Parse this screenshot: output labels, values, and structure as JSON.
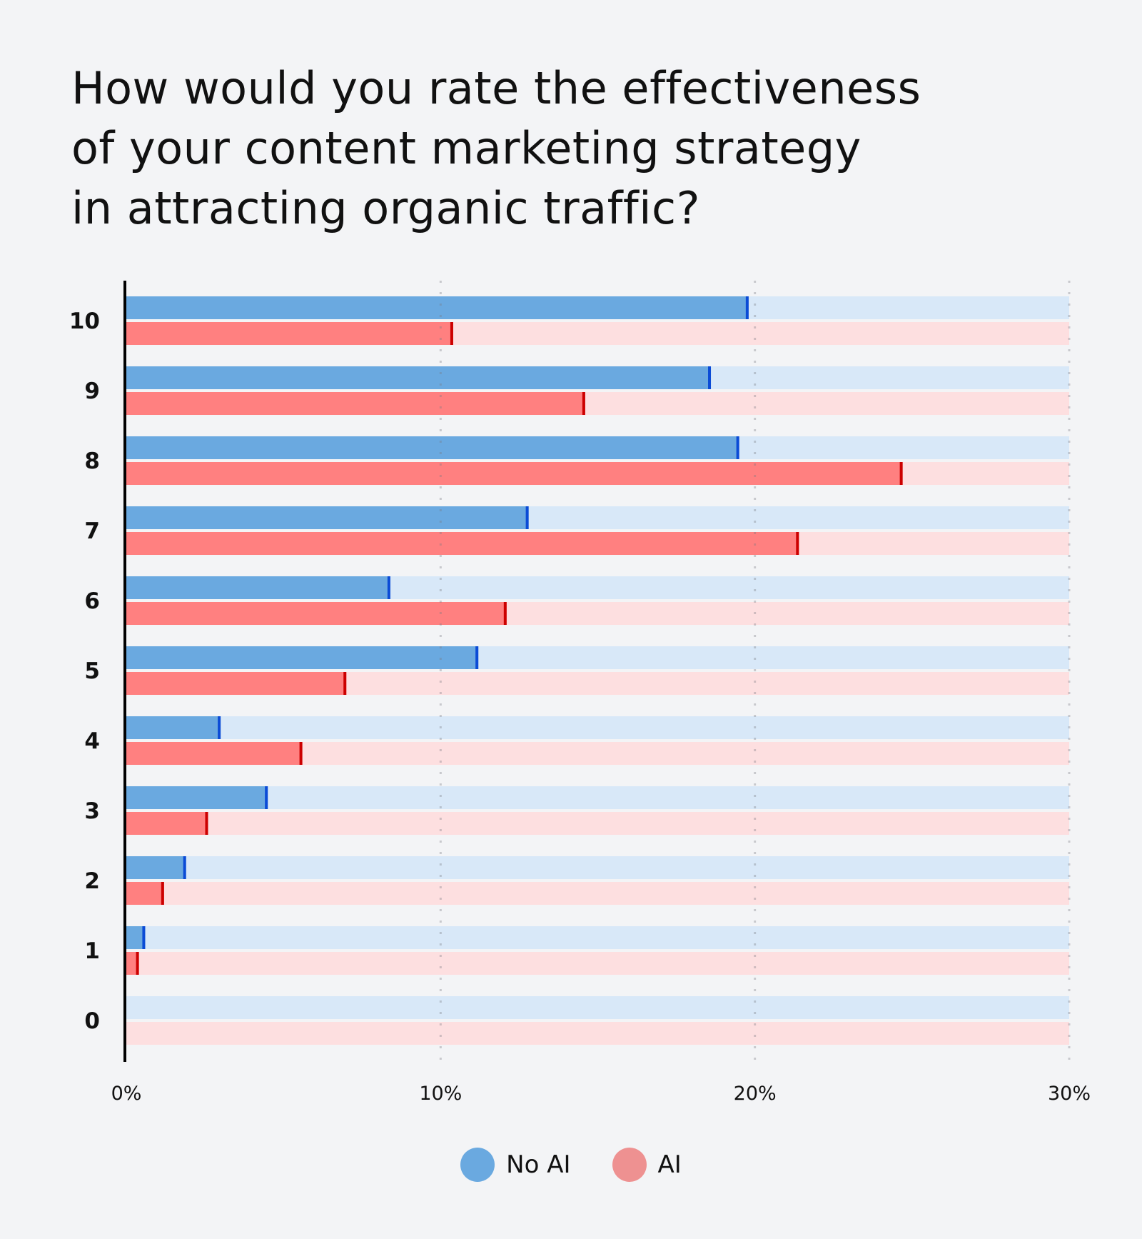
{
  "chart_data": {
    "type": "bar",
    "orientation": "horizontal",
    "title": "How would you rate the effectiveness of your content marketing strategy in attracting organic traffic?",
    "title_lines": [
      "How would you rate the effectiveness",
      "of your content marketing strategy",
      "in attracting organic traffic?"
    ],
    "categories": [
      "10",
      "9",
      "8",
      "7",
      "6",
      "5",
      "4",
      "3",
      "2",
      "1",
      "0"
    ],
    "series": [
      {
        "name": "No AI",
        "color": "#6aa9e0",
        "track_color": "#d8e8f8",
        "marker_color": "#0b4bd6",
        "values": [
          19.8,
          18.6,
          19.5,
          12.8,
          8.4,
          11.2,
          3.0,
          4.5,
          1.9,
          0.6,
          0
        ]
      },
      {
        "name": "AI",
        "color": "#ff8080",
        "track_color": "#fddfe0",
        "marker_color": "#cc0000",
        "values": [
          10.4,
          14.6,
          24.7,
          21.4,
          12.1,
          7.0,
          5.6,
          2.6,
          1.2,
          0.4,
          0
        ]
      }
    ],
    "xlim": [
      0,
      30
    ],
    "xticks": [
      0,
      10,
      20,
      30
    ],
    "xtick_labels": [
      "0%",
      "10%",
      "20%",
      "30%"
    ],
    "xlabel": "",
    "ylabel": "",
    "grid": "vertical dotted",
    "legend": {
      "placement": "bottom-center",
      "entries": [
        {
          "label": "No AI",
          "color": "#6aa9e0"
        },
        {
          "label": "AI",
          "color": "#ee9191"
        }
      ]
    }
  }
}
